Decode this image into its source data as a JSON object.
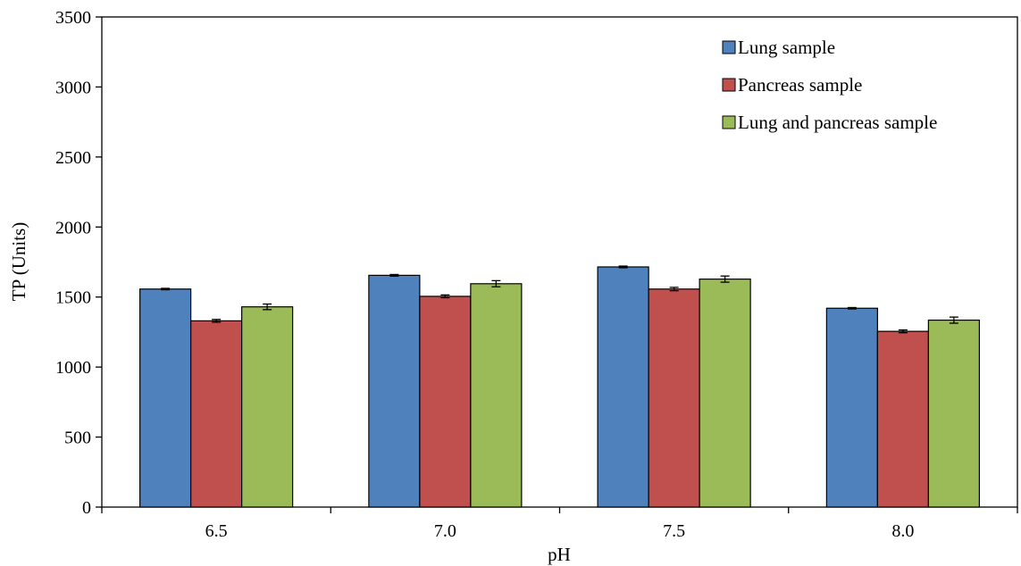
{
  "chart_data": {
    "type": "bar",
    "title": "",
    "xlabel": "pH",
    "ylabel": "TP (Units)",
    "categories": [
      "6.5",
      "7.0",
      "7.5",
      "8.0"
    ],
    "ylim": [
      0,
      3500
    ],
    "yticks": [
      0,
      500,
      1000,
      1500,
      2000,
      2500,
      3000,
      3500
    ],
    "grid": false,
    "legend_position": "top-right",
    "series": [
      {
        "name": "Lung sample",
        "color": "#4F81BD",
        "values": [
          1557,
          1655,
          1715,
          1420
        ],
        "errors": [
          5,
          6,
          6,
          5
        ]
      },
      {
        "name": "Pancreas sample",
        "color": "#C0504D",
        "values": [
          1330,
          1505,
          1557,
          1255
        ],
        "errors": [
          10,
          10,
          12,
          10
        ]
      },
      {
        "name": "Lung and pancreas sample",
        "color": "#9BBB59",
        "values": [
          1430,
          1595,
          1628,
          1335
        ],
        "errors": [
          20,
          22,
          22,
          22
        ]
      }
    ]
  }
}
